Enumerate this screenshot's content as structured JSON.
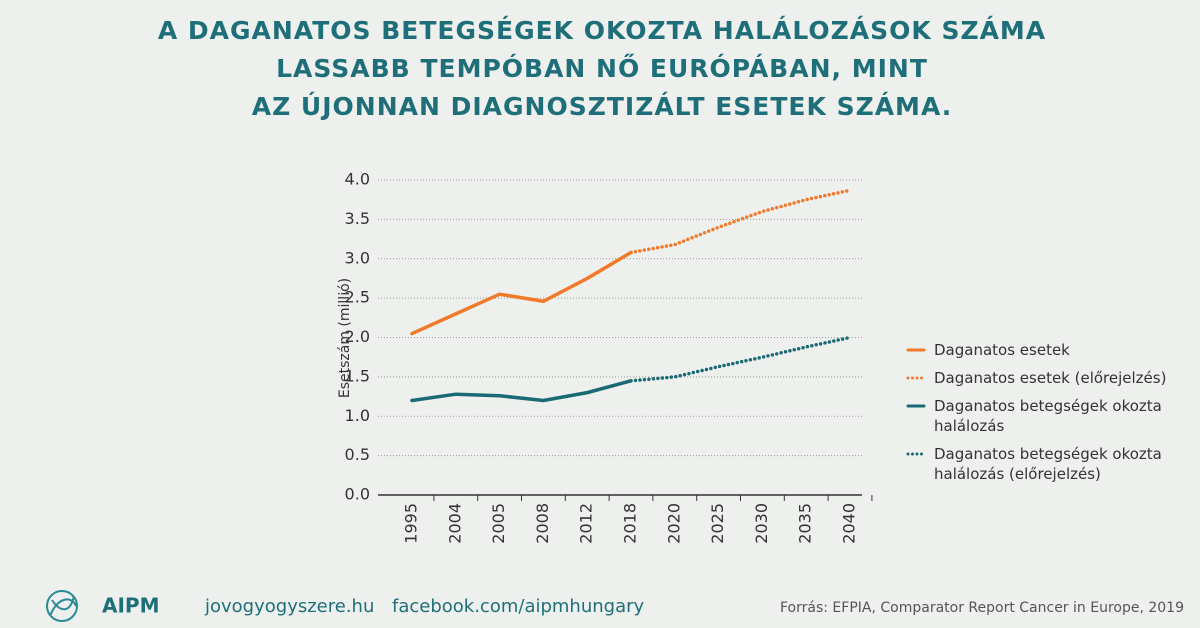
{
  "chart_data": {
    "type": "line",
    "title": [
      "A DAGANATOS BETEGSÉGEK OKOZTA HALÁLOZÁSOK SZÁMA",
      "LASSABB TEMPÓBAN NŐ EURÓPÁBAN, MINT",
      "AZ ÚJONNAN DIAGNOSZTIZÁLT ESETEK SZÁMA."
    ],
    "y_label": "Esetszám (millió)",
    "categories": [
      "1995",
      "2004",
      "2005",
      "2008",
      "2012",
      "2018",
      "2020",
      "2025",
      "2030",
      "2035",
      "2040"
    ],
    "series": [
      {
        "name": "Daganatos esetek",
        "color": "#f07a2a",
        "style": "solid",
        "values": [
          2.05,
          2.3,
          2.55,
          2.46,
          2.75,
          3.08,
          null,
          null,
          null,
          null,
          null
        ]
      },
      {
        "name": "Daganatos esetek (előrejelzés)",
        "color": "#f07a2a",
        "style": "dotted",
        "values": [
          null,
          null,
          null,
          null,
          null,
          3.08,
          3.18,
          3.4,
          3.6,
          3.75,
          3.87
        ]
      },
      {
        "name": "Daganatos betegségek okozta halálozás",
        "color": "#1a6a75",
        "style": "solid",
        "values": [
          1.2,
          1.28,
          1.26,
          1.2,
          1.3,
          1.45,
          null,
          null,
          null,
          null,
          null
        ]
      },
      {
        "name": "Daganatos betegségek okozta halálozás (előrejelzés)",
        "color": "#1a6a75",
        "style": "dotted",
        "values": [
          null,
          null,
          null,
          null,
          null,
          1.45,
          1.5,
          1.63,
          1.75,
          1.88,
          2.0
        ]
      }
    ],
    "ylim": [
      0,
      4
    ],
    "yticks": [
      {
        "value": 0,
        "label": "0.0"
      },
      0.5,
      {
        "value": 1,
        "label": "1.0"
      },
      1.5,
      {
        "value": 2,
        "label": "2.0"
      },
      2.5,
      {
        "value": 3,
        "label": "3.0"
      },
      3.5,
      {
        "value": 4,
        "label": "4.0"
      }
    ],
    "grid": true
  },
  "footer": {
    "logo": "AIPM",
    "website": "jovogyogyszere.hu",
    "facebook": "facebook.com/aipmhungary",
    "source": "Forrás: EFPIA, Comparator Report Cancer in Europe, 2019"
  }
}
